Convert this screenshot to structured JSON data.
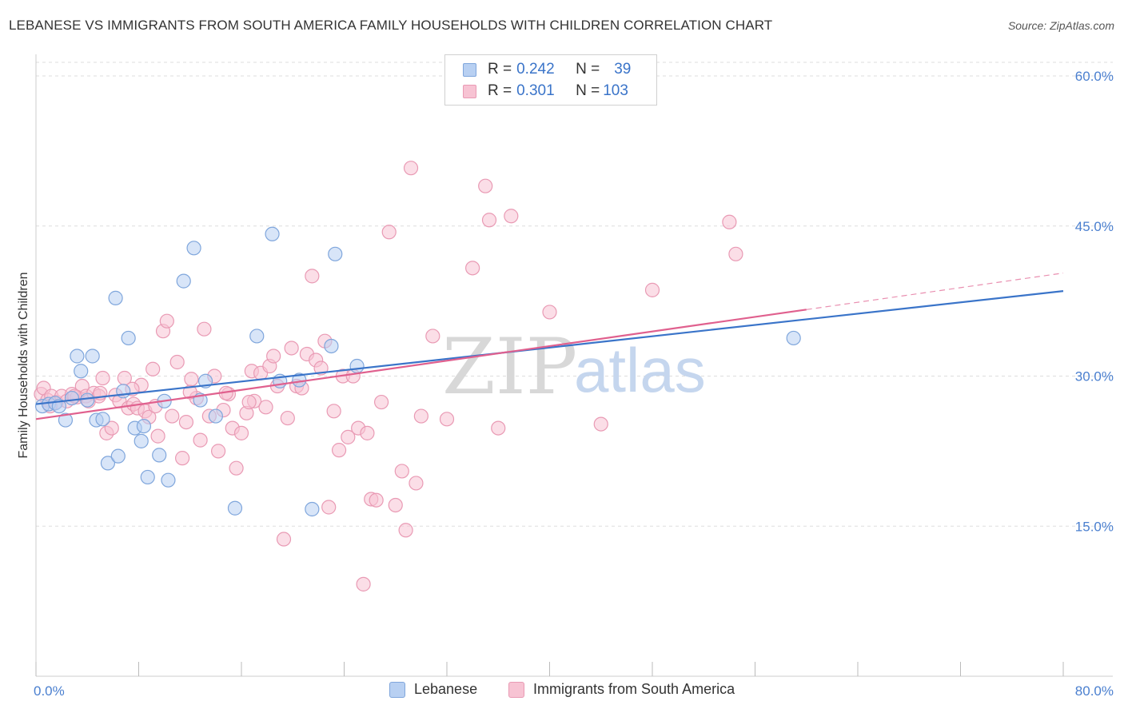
{
  "header": {
    "title": "LEBANESE VS IMMIGRANTS FROM SOUTH AMERICA FAMILY HOUSEHOLDS WITH CHILDREN CORRELATION CHART",
    "source": "Source: ZipAtlas.com"
  },
  "legend": {
    "lebanese": {
      "r_label": "R = ",
      "r_value": "0.242",
      "n_label": "N = ",
      "n_value": "39"
    },
    "immigrants": {
      "r_label": "R = ",
      "r_value": "0.301",
      "n_label": "N = ",
      "n_value": "103"
    }
  },
  "bottom_legend": {
    "lebanese": "Lebanese",
    "immigrants": "Immigrants from South America"
  },
  "watermark": {
    "zip": "ZIP",
    "atlas": "atlas"
  },
  "colors": {
    "lebanese_fill": "#b8d0f2",
    "lebanese_stroke": "#7fa6dc",
    "lebanese_line": "#3a74c9",
    "immigrants_fill": "#f7c3d3",
    "immigrants_stroke": "#e99ab4",
    "immigrants_line": "#e0608e",
    "tick_text": "#4a7fcf",
    "grid": "#dddddd"
  },
  "chart_data": {
    "type": "scatter",
    "title": "LEBANESE VS IMMIGRANTS FROM SOUTH AMERICA FAMILY HOUSEHOLDS WITH CHILDREN CORRELATION CHART",
    "xlabel": "",
    "ylabel": "Family Households with Children",
    "xlim": [
      0,
      80
    ],
    "ylim": [
      0,
      62
    ],
    "x_ticks": [
      0,
      80
    ],
    "x_tick_labels": [
      "0.0%",
      "80.0%"
    ],
    "y_ticks": [
      15,
      30,
      45,
      60
    ],
    "y_tick_labels": [
      "15.0%",
      "30.0%",
      "45.0%",
      "60.0%"
    ],
    "grid": "horizontal dashed",
    "legend_position": "top-center",
    "series": [
      {
        "name": "Lebanese",
        "points": [
          [
            0.5,
            27.0
          ],
          [
            1.0,
            27.2
          ],
          [
            1.5,
            27.3
          ],
          [
            1.8,
            27.0
          ],
          [
            2.3,
            25.6
          ],
          [
            2.8,
            27.8
          ],
          [
            3.2,
            32.0
          ],
          [
            3.5,
            30.5
          ],
          [
            4.0,
            27.6
          ],
          [
            4.4,
            32.0
          ],
          [
            4.7,
            25.6
          ],
          [
            5.2,
            25.7
          ],
          [
            5.6,
            21.3
          ],
          [
            6.2,
            37.8
          ],
          [
            6.4,
            22.0
          ],
          [
            6.8,
            28.5
          ],
          [
            7.2,
            33.8
          ],
          [
            7.7,
            24.8
          ],
          [
            8.2,
            23.5
          ],
          [
            8.4,
            25.0
          ],
          [
            8.7,
            19.9
          ],
          [
            9.6,
            22.1
          ],
          [
            10.0,
            27.5
          ],
          [
            10.3,
            19.6
          ],
          [
            11.5,
            39.5
          ],
          [
            12.3,
            42.8
          ],
          [
            12.8,
            27.6
          ],
          [
            13.2,
            29.5
          ],
          [
            14.0,
            26.0
          ],
          [
            15.5,
            16.8
          ],
          [
            17.2,
            34.0
          ],
          [
            18.4,
            44.2
          ],
          [
            19.0,
            29.5
          ],
          [
            20.5,
            29.6
          ],
          [
            21.5,
            16.7
          ],
          [
            23.0,
            33.0
          ],
          [
            23.3,
            42.2
          ],
          [
            25.0,
            31.0
          ],
          [
            59.0,
            33.8
          ]
        ],
        "trend": {
          "x": [
            0,
            80
          ],
          "y": [
            27.2,
            38.5
          ]
        }
      },
      {
        "name": "Immigrants from South America",
        "points": [
          [
            0.4,
            28.2
          ],
          [
            0.6,
            28.8
          ],
          [
            0.9,
            27.6
          ],
          [
            1.2,
            28.0
          ],
          [
            1.6,
            27.4
          ],
          [
            2.0,
            28.0
          ],
          [
            2.4,
            27.5
          ],
          [
            2.8,
            28.2
          ],
          [
            3.2,
            27.9
          ],
          [
            3.6,
            29.0
          ],
          [
            3.9,
            28.0
          ],
          [
            4.1,
            27.5
          ],
          [
            4.5,
            28.3
          ],
          [
            4.9,
            28.0
          ],
          [
            5.2,
            29.8
          ],
          [
            5.5,
            24.3
          ],
          [
            5.9,
            24.8
          ],
          [
            6.2,
            28.1
          ],
          [
            6.5,
            27.5
          ],
          [
            6.9,
            29.8
          ],
          [
            7.2,
            26.8
          ],
          [
            7.6,
            27.2
          ],
          [
            7.9,
            26.8
          ],
          [
            8.2,
            29.1
          ],
          [
            8.5,
            26.5
          ],
          [
            8.8,
            25.9
          ],
          [
            9.1,
            30.7
          ],
          [
            9.5,
            24.0
          ],
          [
            9.9,
            34.5
          ],
          [
            10.2,
            35.5
          ],
          [
            10.6,
            26.0
          ],
          [
            11.0,
            31.4
          ],
          [
            11.4,
            21.8
          ],
          [
            11.7,
            25.4
          ],
          [
            12.1,
            29.7
          ],
          [
            12.5,
            27.8
          ],
          [
            12.8,
            23.6
          ],
          [
            13.1,
            34.7
          ],
          [
            13.5,
            26.0
          ],
          [
            13.9,
            30.0
          ],
          [
            14.2,
            22.5
          ],
          [
            14.6,
            26.6
          ],
          [
            15.0,
            28.2
          ],
          [
            15.3,
            24.8
          ],
          [
            15.6,
            20.8
          ],
          [
            16.0,
            24.3
          ],
          [
            16.4,
            26.3
          ],
          [
            16.8,
            30.5
          ],
          [
            17.0,
            27.5
          ],
          [
            17.5,
            30.3
          ],
          [
            17.9,
            26.9
          ],
          [
            18.2,
            31.0
          ],
          [
            18.5,
            32.0
          ],
          [
            18.8,
            29.0
          ],
          [
            19.3,
            13.7
          ],
          [
            19.6,
            25.8
          ],
          [
            19.9,
            32.8
          ],
          [
            20.3,
            29.0
          ],
          [
            20.7,
            28.8
          ],
          [
            21.1,
            32.2
          ],
          [
            21.5,
            40.0
          ],
          [
            21.8,
            31.6
          ],
          [
            22.2,
            30.8
          ],
          [
            22.5,
            33.5
          ],
          [
            22.8,
            16.9
          ],
          [
            23.2,
            26.5
          ],
          [
            23.6,
            22.6
          ],
          [
            23.9,
            30.0
          ],
          [
            24.3,
            23.9
          ],
          [
            24.7,
            30.0
          ],
          [
            25.1,
            24.8
          ],
          [
            25.5,
            9.2
          ],
          [
            25.8,
            24.3
          ],
          [
            26.1,
            17.7
          ],
          [
            26.5,
            17.6
          ],
          [
            26.9,
            27.4
          ],
          [
            27.5,
            44.4
          ],
          [
            28.0,
            17.1
          ],
          [
            28.5,
            20.5
          ],
          [
            28.8,
            14.6
          ],
          [
            29.2,
            50.8
          ],
          [
            29.6,
            19.3
          ],
          [
            30.0,
            26.0
          ],
          [
            30.9,
            34.0
          ],
          [
            32.0,
            25.7
          ],
          [
            34.0,
            40.8
          ],
          [
            35.0,
            49.0
          ],
          [
            35.3,
            45.6
          ],
          [
            36.0,
            24.8
          ],
          [
            37.0,
            46.0
          ],
          [
            40.0,
            36.4
          ],
          [
            44.0,
            25.2
          ],
          [
            48.0,
            38.6
          ],
          [
            54.0,
            45.4
          ],
          [
            54.5,
            42.2
          ],
          [
            1.1,
            27.0
          ],
          [
            3.0,
            28.0
          ],
          [
            5.0,
            28.3
          ],
          [
            7.5,
            28.7
          ],
          [
            9.3,
            27.0
          ],
          [
            12.0,
            28.4
          ],
          [
            14.8,
            28.3
          ],
          [
            16.6,
            27.4
          ]
        ],
        "trend": {
          "x": [
            0,
            80
          ],
          "y": [
            25.7,
            40.3
          ],
          "solid_until_x": 60
        }
      }
    ]
  },
  "axis": {
    "ylabel": "Family Households with Children",
    "x_min_label": "0.0%",
    "x_max_label": "80.0%",
    "y_labels": [
      "15.0%",
      "30.0%",
      "45.0%",
      "60.0%"
    ]
  }
}
